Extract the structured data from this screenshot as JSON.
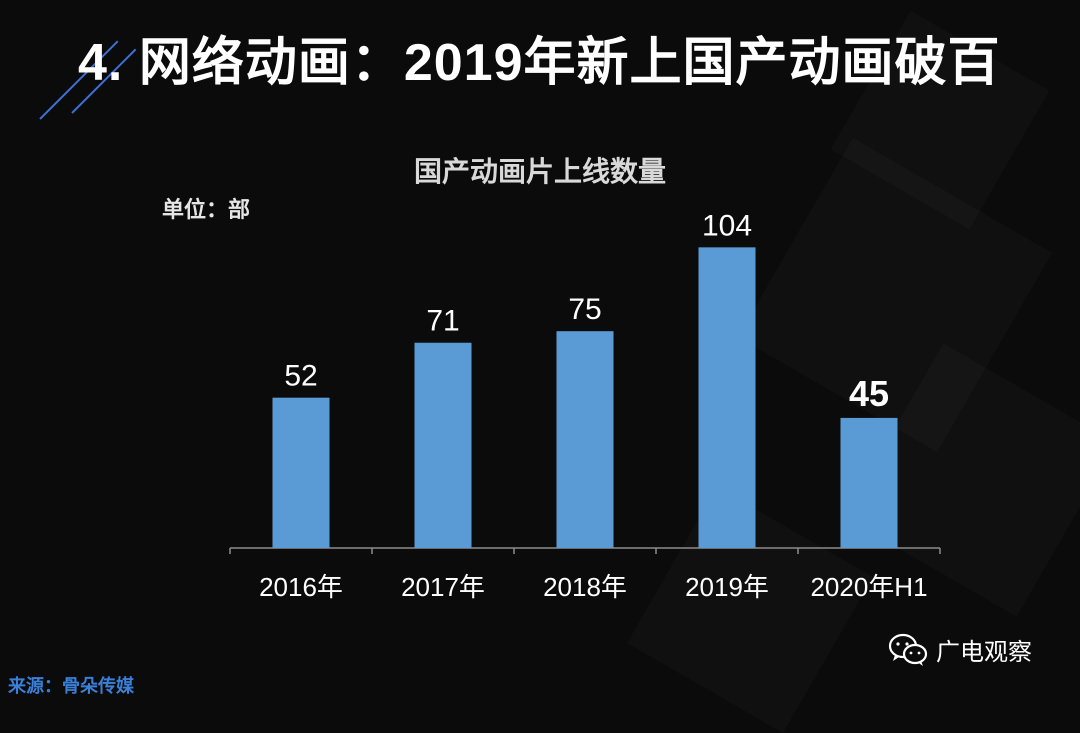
{
  "page": {
    "title": "4. 网络动画：2019年新上国产动画破百",
    "unit": "单位：部",
    "source": "来源：骨朵传媒",
    "watermark": "广电观察"
  },
  "colors": {
    "background": "#0b0b0b",
    "bar": "#5b9bd5",
    "accent_line": "#3d6fd4",
    "source_text": "#3a7fd8"
  },
  "chart_data": {
    "type": "bar",
    "title": "国产动画片上线数量",
    "categories": [
      "2016年",
      "2017年",
      "2018年",
      "2019年",
      "2020年H1"
    ],
    "values": [
      52,
      71,
      75,
      104,
      45
    ],
    "data_labels": [
      "52",
      "71",
      "75",
      "104",
      "45"
    ],
    "ylim": [
      0,
      110
    ],
    "grid": false,
    "legend": "none"
  }
}
